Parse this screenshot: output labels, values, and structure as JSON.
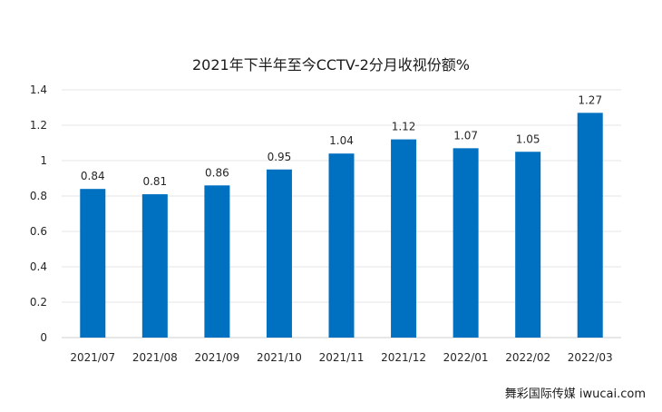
{
  "chart_data": {
    "type": "bar",
    "title": "2021年下半年至今CCTV-2分月收视份额%",
    "xlabel": "",
    "ylabel": "",
    "categories": [
      "2021/07",
      "2021/08",
      "2021/09",
      "2021/10",
      "2021/11",
      "2021/12",
      "2022/01",
      "2022/02",
      "2022/03"
    ],
    "values": [
      0.84,
      0.81,
      0.86,
      0.95,
      1.04,
      1.12,
      1.07,
      1.05,
      1.27
    ],
    "value_labels": [
      "0.84",
      "0.81",
      "0.86",
      "0.95",
      "1.04",
      "1.12",
      "1.07",
      "1.05",
      "1.27"
    ],
    "ylim": [
      0,
      1.4
    ],
    "yticks": [
      0,
      0.2,
      0.4,
      0.6,
      0.8,
      1,
      1.2,
      1.4
    ],
    "ytick_labels": [
      "0",
      "0.2",
      "0.4",
      "0.6",
      "0.8",
      "1",
      "1.2",
      "1.4"
    ],
    "grid": true,
    "legend": "none",
    "bar_color": "#0070C0",
    "grid_color": "#e6e6e6"
  },
  "watermark": "舞彩国际传媒 iwucai.com"
}
